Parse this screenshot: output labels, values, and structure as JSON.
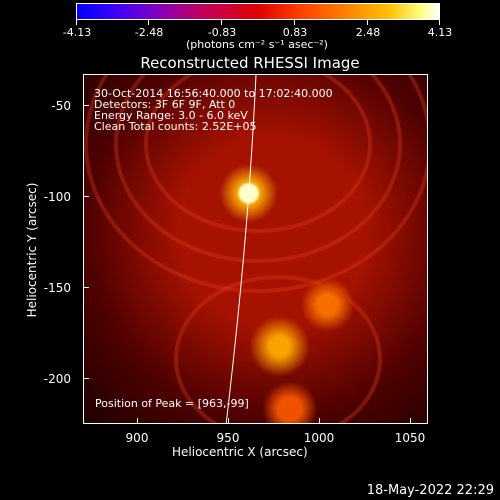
{
  "colorbar": {
    "ticks": [
      "-4.13",
      "-2.48",
      "-0.83",
      "0.83",
      "2.48",
      "4.13"
    ],
    "units": "(photons cm⁻² s⁻¹ asec⁻²)"
  },
  "title": "Reconstructed RHESSI Image",
  "info": {
    "line1": "30-Oct-2014 16:56:40.000 to 17:02:40.000",
    "line2": "Detectors: 3F 6F 9F, Att 0",
    "line3": "Energy Range: 3.0 - 6.0 keV",
    "line4": "Clean    Total counts: 2.52E+05"
  },
  "peak": "Position of Peak = [963,-99]",
  "yaxis": {
    "title": "Heliocentric Y (arcsec)",
    "ticks": [
      "-50",
      "-100",
      "-150",
      "-200"
    ]
  },
  "xaxis": {
    "title": "Heliocentric X (arcsec)",
    "ticks": [
      "900",
      "950",
      "1000",
      "1050"
    ]
  },
  "timestamp": "18-May-2022 22:29"
}
